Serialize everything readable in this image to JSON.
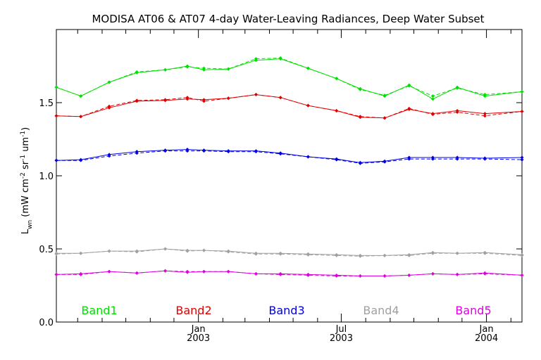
{
  "chart_data": {
    "type": "line",
    "title": "MODISA AT06 & AT07 4-day Water-Leaving Radiances, Deep Water Subset",
    "ylabel": "L",
    "ylabel_sub": "wn",
    "ylabel_units": "(mW cm",
    "ylabel_exp1": "-2",
    "ylabel_mid": " sr",
    "ylabel_exp2": "-1",
    "ylabel_mid2": " um",
    "ylabel_exp3": "-1",
    "ylabel_end": ")",
    "ylim": [
      0.0,
      2.0
    ],
    "yticks": [
      {
        "value": 0.0,
        "label": "0.0"
      },
      {
        "value": 0.5,
        "label": "0.5"
      },
      {
        "value": 1.0,
        "label": "1.0"
      },
      {
        "value": 1.5,
        "label": "1.5"
      }
    ],
    "xlim": [
      "2002-07-05",
      "2004-02-15"
    ],
    "xticks_major": [
      {
        "date": "2003-01-01",
        "label": "Jan",
        "year": "2003"
      },
      {
        "date": "2003-07-01",
        "label": "Jul",
        "year": "2003"
      },
      {
        "date": "2004-01-01",
        "label": "Jan",
        "year": "2004"
      }
    ],
    "xticks_minor": [
      "2002-08-01",
      "2002-09-01",
      "2002-10-01",
      "2002-11-01",
      "2002-12-01",
      "2003-02-01",
      "2003-03-01",
      "2003-04-01",
      "2003-05-01",
      "2003-06-01",
      "2003-08-01",
      "2003-09-01",
      "2003-10-01",
      "2003-11-01",
      "2003-12-01",
      "2004-02-01"
    ],
    "grid": false,
    "legend_placement": "bottom",
    "series": [
      {
        "name": "Band1",
        "color": "#00e000",
        "AT06": [
          [
            "2002-07-05",
            1.605
          ],
          [
            "2002-08-05",
            1.545
          ],
          [
            "2002-09-10",
            1.64
          ],
          [
            "2002-10-15",
            1.705
          ],
          [
            "2002-11-20",
            1.725
          ],
          [
            "2002-12-18",
            1.75
          ],
          [
            "2003-01-08",
            1.725
          ],
          [
            "2003-02-08",
            1.73
          ],
          [
            "2003-03-15",
            1.79
          ],
          [
            "2003-04-15",
            1.8
          ],
          [
            "2003-05-20",
            1.735
          ],
          [
            "2003-06-25",
            1.665
          ],
          [
            "2003-07-25",
            1.595
          ],
          [
            "2003-08-25",
            1.545
          ],
          [
            "2003-09-25",
            1.62
          ],
          [
            "2003-10-25",
            1.525
          ],
          [
            "2003-11-25",
            1.605
          ],
          [
            "2003-12-30",
            1.545
          ],
          [
            "2004-02-15",
            1.575
          ]
        ],
        "AT07": [
          [
            "2002-07-05",
            1.605
          ],
          [
            "2002-08-05",
            1.545
          ],
          [
            "2002-09-10",
            1.64
          ],
          [
            "2002-10-15",
            1.71
          ],
          [
            "2002-11-20",
            1.725
          ],
          [
            "2002-12-18",
            1.745
          ],
          [
            "2003-01-08",
            1.735
          ],
          [
            "2003-02-08",
            1.73
          ],
          [
            "2003-03-15",
            1.8
          ],
          [
            "2003-04-15",
            1.805
          ],
          [
            "2003-05-20",
            1.735
          ],
          [
            "2003-06-25",
            1.665
          ],
          [
            "2003-07-25",
            1.59
          ],
          [
            "2003-08-25",
            1.55
          ],
          [
            "2003-09-25",
            1.615
          ],
          [
            "2003-10-25",
            1.545
          ],
          [
            "2003-11-25",
            1.6
          ],
          [
            "2003-12-30",
            1.555
          ],
          [
            "2004-02-15",
            1.575
          ]
        ]
      },
      {
        "name": "Band2",
        "color": "#e00000",
        "AT06": [
          [
            "2002-07-05",
            1.41
          ],
          [
            "2002-08-05",
            1.405
          ],
          [
            "2002-09-10",
            1.465
          ],
          [
            "2002-10-15",
            1.51
          ],
          [
            "2002-11-20",
            1.515
          ],
          [
            "2002-12-18",
            1.525
          ],
          [
            "2003-01-08",
            1.52
          ],
          [
            "2003-02-08",
            1.53
          ],
          [
            "2003-03-15",
            1.555
          ],
          [
            "2003-04-15",
            1.535
          ],
          [
            "2003-05-20",
            1.48
          ],
          [
            "2003-06-25",
            1.445
          ],
          [
            "2003-07-25",
            1.4
          ],
          [
            "2003-08-25",
            1.395
          ],
          [
            "2003-09-25",
            1.455
          ],
          [
            "2003-10-25",
            1.425
          ],
          [
            "2003-11-25",
            1.445
          ],
          [
            "2003-12-30",
            1.425
          ],
          [
            "2004-02-15",
            1.44
          ]
        ],
        "AT07": [
          [
            "2002-07-05",
            1.41
          ],
          [
            "2002-08-05",
            1.405
          ],
          [
            "2002-09-10",
            1.475
          ],
          [
            "2002-10-15",
            1.515
          ],
          [
            "2002-11-20",
            1.52
          ],
          [
            "2002-12-18",
            1.535
          ],
          [
            "2003-01-08",
            1.51
          ],
          [
            "2003-02-08",
            1.53
          ],
          [
            "2003-03-15",
            1.555
          ],
          [
            "2003-04-15",
            1.535
          ],
          [
            "2003-05-20",
            1.48
          ],
          [
            "2003-06-25",
            1.445
          ],
          [
            "2003-07-25",
            1.405
          ],
          [
            "2003-08-25",
            1.395
          ],
          [
            "2003-09-25",
            1.46
          ],
          [
            "2003-10-25",
            1.42
          ],
          [
            "2003-11-25",
            1.435
          ],
          [
            "2003-12-30",
            1.41
          ],
          [
            "2004-02-15",
            1.44
          ]
        ]
      },
      {
        "name": "Band3",
        "color": "#0000e0",
        "AT06": [
          [
            "2002-07-05",
            1.105
          ],
          [
            "2002-08-05",
            1.11
          ],
          [
            "2002-09-10",
            1.145
          ],
          [
            "2002-10-15",
            1.165
          ],
          [
            "2002-11-20",
            1.175
          ],
          [
            "2002-12-18",
            1.18
          ],
          [
            "2003-01-08",
            1.175
          ],
          [
            "2003-02-08",
            1.17
          ],
          [
            "2003-03-15",
            1.17
          ],
          [
            "2003-04-15",
            1.155
          ],
          [
            "2003-05-20",
            1.13
          ],
          [
            "2003-06-25",
            1.115
          ],
          [
            "2003-07-25",
            1.09
          ],
          [
            "2003-08-25",
            1.1
          ],
          [
            "2003-09-25",
            1.125
          ],
          [
            "2003-10-25",
            1.125
          ],
          [
            "2003-11-25",
            1.125
          ],
          [
            "2003-12-30",
            1.12
          ],
          [
            "2004-02-15",
            1.125
          ]
        ],
        "AT07": [
          [
            "2002-07-05",
            1.105
          ],
          [
            "2002-08-05",
            1.105
          ],
          [
            "2002-09-10",
            1.135
          ],
          [
            "2002-10-15",
            1.155
          ],
          [
            "2002-11-20",
            1.17
          ],
          [
            "2002-12-18",
            1.17
          ],
          [
            "2003-01-08",
            1.17
          ],
          [
            "2003-02-08",
            1.165
          ],
          [
            "2003-03-15",
            1.165
          ],
          [
            "2003-04-15",
            1.15
          ],
          [
            "2003-05-20",
            1.13
          ],
          [
            "2003-06-25",
            1.11
          ],
          [
            "2003-07-25",
            1.085
          ],
          [
            "2003-08-25",
            1.095
          ],
          [
            "2003-09-25",
            1.115
          ],
          [
            "2003-10-25",
            1.115
          ],
          [
            "2003-11-25",
            1.115
          ],
          [
            "2003-12-30",
            1.115
          ],
          [
            "2004-02-15",
            1.11
          ]
        ]
      },
      {
        "name": "Band4",
        "color": "#a0a0a0",
        "AT06": [
          [
            "2002-07-05",
            0.47
          ],
          [
            "2002-08-05",
            0.47
          ],
          [
            "2002-09-10",
            0.485
          ],
          [
            "2002-10-15",
            0.485
          ],
          [
            "2002-11-20",
            0.5
          ],
          [
            "2002-12-18",
            0.49
          ],
          [
            "2003-01-08",
            0.49
          ],
          [
            "2003-02-08",
            0.485
          ],
          [
            "2003-03-15",
            0.47
          ],
          [
            "2003-04-15",
            0.47
          ],
          [
            "2003-05-20",
            0.465
          ],
          [
            "2003-06-25",
            0.46
          ],
          [
            "2003-07-25",
            0.455
          ],
          [
            "2003-08-25",
            0.455
          ],
          [
            "2003-09-25",
            0.46
          ],
          [
            "2003-10-25",
            0.475
          ],
          [
            "2003-11-25",
            0.47
          ],
          [
            "2003-12-30",
            0.475
          ],
          [
            "2004-02-15",
            0.46
          ]
        ],
        "AT07": [
          [
            "2002-07-05",
            0.465
          ],
          [
            "2002-08-05",
            0.47
          ],
          [
            "2002-09-10",
            0.485
          ],
          [
            "2002-10-15",
            0.48
          ],
          [
            "2002-11-20",
            0.5
          ],
          [
            "2002-12-18",
            0.485
          ],
          [
            "2003-01-08",
            0.49
          ],
          [
            "2003-02-08",
            0.48
          ],
          [
            "2003-03-15",
            0.465
          ],
          [
            "2003-04-15",
            0.465
          ],
          [
            "2003-05-20",
            0.46
          ],
          [
            "2003-06-25",
            0.455
          ],
          [
            "2003-07-25",
            0.45
          ],
          [
            "2003-08-25",
            0.455
          ],
          [
            "2003-09-25",
            0.455
          ],
          [
            "2003-10-25",
            0.47
          ],
          [
            "2003-11-25",
            0.47
          ],
          [
            "2003-12-30",
            0.47
          ],
          [
            "2004-02-15",
            0.455
          ]
        ]
      },
      {
        "name": "Band5",
        "color": "#e000e0",
        "AT06": [
          [
            "2002-07-05",
            0.325
          ],
          [
            "2002-08-05",
            0.33
          ],
          [
            "2002-09-10",
            0.345
          ],
          [
            "2002-10-15",
            0.335
          ],
          [
            "2002-11-20",
            0.35
          ],
          [
            "2002-12-18",
            0.34
          ],
          [
            "2003-01-08",
            0.345
          ],
          [
            "2003-02-08",
            0.345
          ],
          [
            "2003-03-15",
            0.33
          ],
          [
            "2003-04-15",
            0.33
          ],
          [
            "2003-05-20",
            0.325
          ],
          [
            "2003-06-25",
            0.32
          ],
          [
            "2003-07-25",
            0.315
          ],
          [
            "2003-08-25",
            0.315
          ],
          [
            "2003-09-25",
            0.32
          ],
          [
            "2003-10-25",
            0.33
          ],
          [
            "2003-11-25",
            0.325
          ],
          [
            "2003-12-30",
            0.335
          ],
          [
            "2004-02-15",
            0.32
          ]
        ],
        "AT07": [
          [
            "2002-07-05",
            0.325
          ],
          [
            "2002-08-05",
            0.325
          ],
          [
            "2002-09-10",
            0.345
          ],
          [
            "2002-10-15",
            0.335
          ],
          [
            "2002-11-20",
            0.35
          ],
          [
            "2002-12-18",
            0.345
          ],
          [
            "2003-01-08",
            0.345
          ],
          [
            "2003-02-08",
            0.345
          ],
          [
            "2003-03-15",
            0.33
          ],
          [
            "2003-04-15",
            0.325
          ],
          [
            "2003-05-20",
            0.32
          ],
          [
            "2003-06-25",
            0.315
          ],
          [
            "2003-07-25",
            0.315
          ],
          [
            "2003-08-25",
            0.315
          ],
          [
            "2003-09-25",
            0.32
          ],
          [
            "2003-10-25",
            0.33
          ],
          [
            "2003-11-25",
            0.325
          ],
          [
            "2003-12-30",
            0.33
          ],
          [
            "2004-02-15",
            0.32
          ]
        ]
      }
    ]
  }
}
